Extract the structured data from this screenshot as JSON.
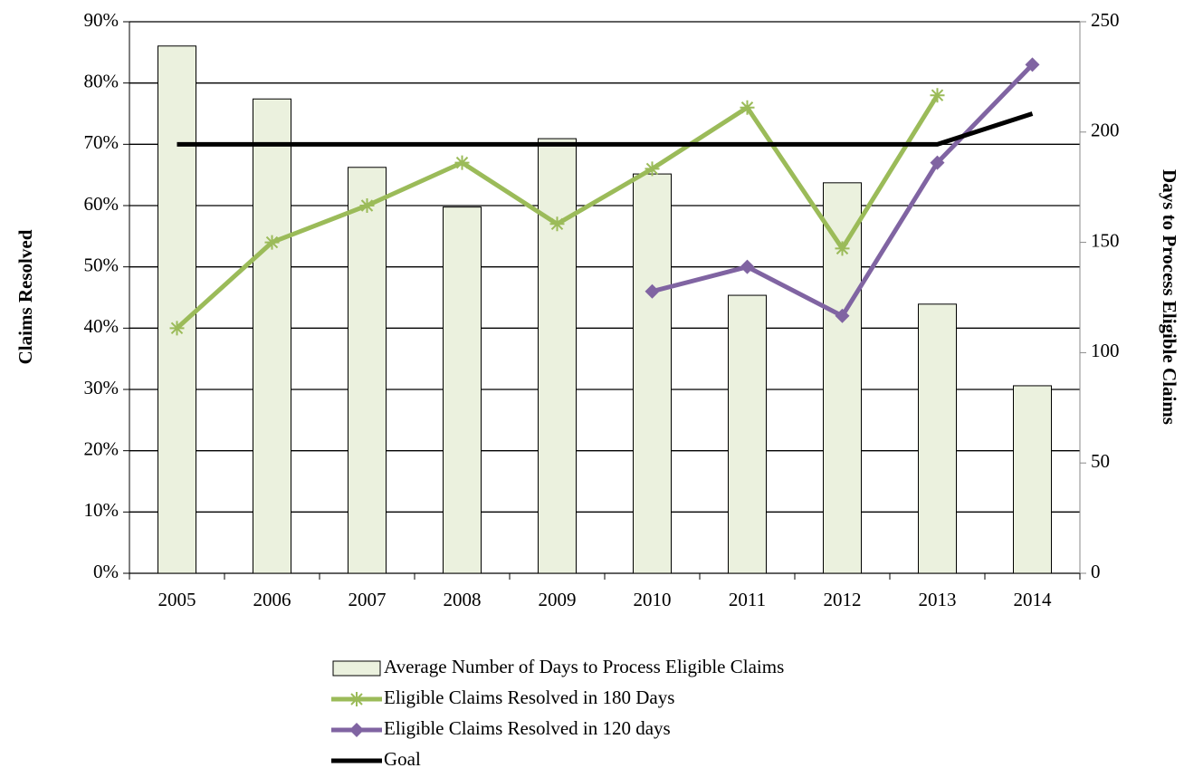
{
  "chart_data": {
    "type": "bar",
    "ylabel": "Claims Resolved",
    "y2label": "Days to Process Eligible Claims",
    "categories": [
      "2005",
      "2006",
      "2007",
      "2008",
      "2009",
      "2010",
      "2011",
      "2012",
      "2013",
      "2014"
    ],
    "series": [
      {
        "name": "Average Number of Days to Process Eligible Claims",
        "type": "bar",
        "axis": "y2",
        "color": "#ebf1de",
        "values": [
          239,
          215,
          184,
          166,
          197,
          181,
          126,
          177,
          122,
          85
        ]
      },
      {
        "name": "Eligible Claims Resolved in 180 Days",
        "type": "line",
        "marker": "star",
        "color": "#9bbb59",
        "values": [
          40,
          54,
          60,
          67,
          57,
          66,
          76,
          53,
          78,
          null
        ]
      },
      {
        "name": "Eligible Claims Resolved in 120 days",
        "type": "line",
        "marker": "diamond",
        "color": "#8064a2",
        "values": [
          null,
          null,
          null,
          null,
          null,
          46,
          50,
          42,
          67,
          83
        ]
      },
      {
        "name": "Goal",
        "type": "line",
        "color": "#000000",
        "values": [
          70,
          70,
          70,
          70,
          70,
          70,
          70,
          70,
          70,
          75
        ]
      }
    ],
    "ylim": [
      0,
      90
    ],
    "yticks": [
      {
        "value": 0,
        "label": "0%"
      },
      {
        "value": 10,
        "label": "10%"
      },
      {
        "value": 20,
        "label": "20%"
      },
      {
        "value": 30,
        "label": "30%"
      },
      {
        "value": 40,
        "label": "40%"
      },
      {
        "value": 50,
        "label": "50%"
      },
      {
        "value": 60,
        "label": "60%"
      },
      {
        "value": 70,
        "label": "70%"
      },
      {
        "value": 80,
        "label": "80%"
      },
      {
        "value": 90,
        "label": "90%"
      }
    ],
    "y2lim": [
      0,
      250
    ],
    "y2ticks": [
      0,
      50,
      100,
      150,
      200,
      250
    ],
    "grid": true,
    "legend": "bottom"
  }
}
